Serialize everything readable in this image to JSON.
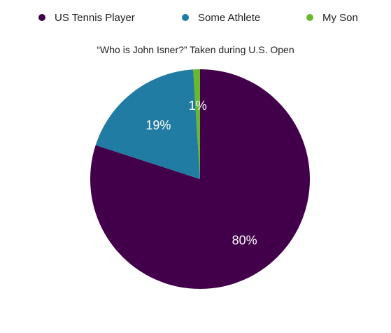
{
  "chart_data": {
    "type": "pie",
    "title": "“Who is John Isner?” Taken during U.S. Open",
    "legend_position": "top",
    "series": [
      {
        "name": "US Tennis Player",
        "value": 80,
        "label": "80%",
        "color": "#42004a"
      },
      {
        "name": "Some Athlete",
        "value": 19,
        "label": "19%",
        "color": "#217ca3"
      },
      {
        "name": "My Son",
        "value": 1,
        "label": "1%",
        "color": "#6ab82e"
      }
    ]
  }
}
